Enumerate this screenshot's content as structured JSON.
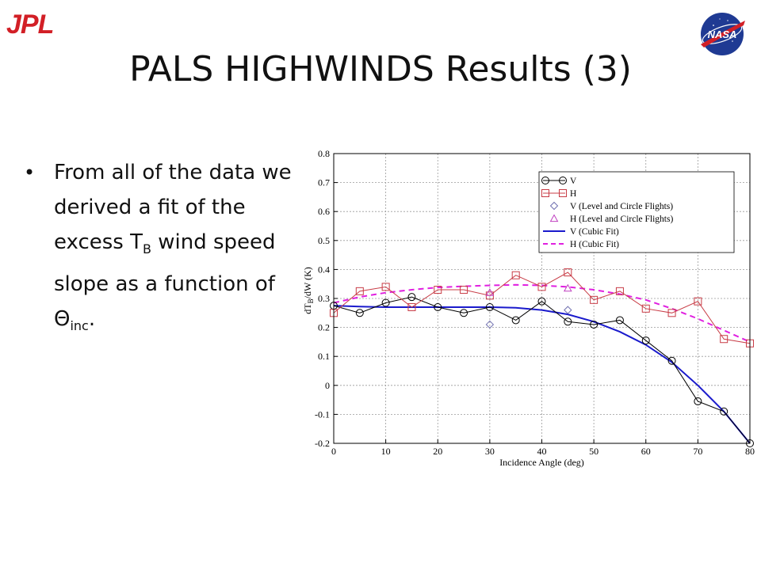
{
  "logos": {
    "left": "JPL",
    "right": "NASA"
  },
  "slide": {
    "title": "PALS HIGHWINDS Results (3)"
  },
  "bullet": {
    "text_before_sub1": "From all of the data we derived a fit of the excess T",
    "sub1": "B",
    "text_middle": " wind speed slope as a function of Θ",
    "sub2": "inc",
    "text_after": "."
  },
  "chart_data": {
    "type": "line",
    "xlabel": "Incidence Angle (deg)",
    "ylabel": "dT_B/dW (K)",
    "xlim": [
      0,
      80
    ],
    "ylim": [
      -0.2,
      0.8
    ],
    "xticks": [
      0,
      10,
      20,
      30,
      40,
      50,
      60,
      70,
      80
    ],
    "yticks": [
      -0.2,
      -0.1,
      0,
      0.1,
      0.2,
      0.3,
      0.4,
      0.5,
      0.6,
      0.7,
      0.8
    ],
    "grid": true,
    "legend_position": "top-right",
    "series": [
      {
        "name": "V",
        "kind": "line-markers",
        "marker": "circle",
        "color": "#000000",
        "x": [
          0,
          5,
          10,
          15,
          20,
          25,
          30,
          35,
          40,
          45,
          50,
          55,
          60,
          65,
          70,
          75,
          80
        ],
        "y": [
          0.275,
          0.25,
          0.285,
          0.305,
          0.27,
          0.25,
          0.27,
          0.225,
          0.29,
          0.22,
          0.21,
          0.225,
          0.155,
          0.085,
          -0.055,
          -0.09,
          -0.2
        ]
      },
      {
        "name": "H",
        "kind": "line-markers",
        "marker": "square",
        "color": "#c83c46",
        "x": [
          0,
          5,
          10,
          15,
          20,
          25,
          30,
          35,
          40,
          45,
          50,
          55,
          60,
          65,
          70,
          75,
          80
        ],
        "y": [
          0.25,
          0.325,
          0.34,
          0.27,
          0.33,
          0.33,
          0.31,
          0.38,
          0.34,
          0.39,
          0.295,
          0.325,
          0.265,
          0.25,
          0.29,
          0.16,
          0.145
        ]
      },
      {
        "name": "V (Level and Circle Flights)",
        "kind": "markers",
        "marker": "diamond",
        "color": "#7070b0",
        "x": [
          30,
          45
        ],
        "y": [
          0.21,
          0.26
        ]
      },
      {
        "name": "H (Level and Circle Flights)",
        "kind": "markers",
        "marker": "triangle",
        "color": "#c040c0",
        "x": [
          30,
          45
        ],
        "y": [
          0.32,
          0.335
        ]
      },
      {
        "name": "V (Cubic Fit)",
        "kind": "solid",
        "color": "#1a1acc",
        "x": [
          0,
          5,
          10,
          15,
          20,
          25,
          30,
          35,
          40,
          45,
          50,
          55,
          60,
          65,
          70,
          75,
          80
        ],
        "y": [
          0.275,
          0.272,
          0.27,
          0.27,
          0.27,
          0.27,
          0.27,
          0.268,
          0.26,
          0.245,
          0.22,
          0.185,
          0.14,
          0.08,
          0.0,
          -0.09,
          -0.2
        ]
      },
      {
        "name": "H (Cubic Fit)",
        "kind": "dashed",
        "color": "#e020e0",
        "x": [
          0,
          5,
          10,
          15,
          20,
          25,
          30,
          35,
          40,
          45,
          50,
          55,
          60,
          65,
          70,
          75,
          80
        ],
        "y": [
          0.285,
          0.305,
          0.32,
          0.33,
          0.338,
          0.342,
          0.345,
          0.347,
          0.345,
          0.34,
          0.33,
          0.315,
          0.295,
          0.265,
          0.23,
          0.19,
          0.15
        ]
      }
    ]
  }
}
